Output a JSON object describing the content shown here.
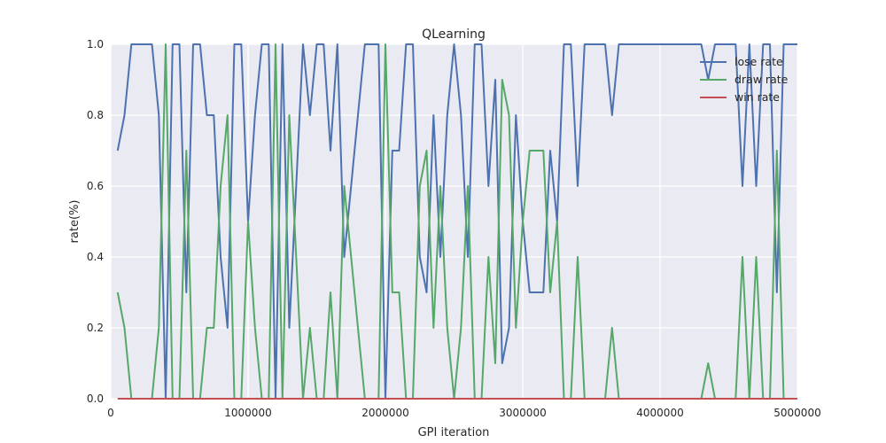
{
  "chart_data": {
    "type": "line",
    "title": "QLearning",
    "xlabel": "GPI iteration",
    "ylabel": "rate(%)",
    "xlim": [
      0,
      5000000
    ],
    "ylim": [
      0.0,
      1.0
    ],
    "xticks": [
      "0",
      "1000000",
      "2000000",
      "3000000",
      "4000000",
      "5000000"
    ],
    "yticks": [
      "0.0",
      "0.2",
      "0.4",
      "0.6",
      "0.8",
      "1.0"
    ],
    "grid": true,
    "legend_position": "top-right",
    "x": [
      50000,
      100000,
      150000,
      200000,
      250000,
      300000,
      350000,
      400000,
      450000,
      500000,
      550000,
      600000,
      650000,
      700000,
      750000,
      800000,
      850000,
      900000,
      950000,
      1000000,
      1050000,
      1100000,
      1150000,
      1200000,
      1250000,
      1300000,
      1350000,
      1400000,
      1450000,
      1500000,
      1550000,
      1600000,
      1650000,
      1700000,
      1750000,
      1800000,
      1850000,
      1900000,
      1950000,
      2000000,
      2050000,
      2100000,
      2150000,
      2200000,
      2250000,
      2300000,
      2350000,
      2400000,
      2450000,
      2500000,
      2550000,
      2600000,
      2650000,
      2700000,
      2750000,
      2800000,
      2850000,
      2900000,
      2950000,
      3000000,
      3050000,
      3100000,
      3150000,
      3200000,
      3250000,
      3300000,
      3350000,
      3400000,
      3450000,
      3500000,
      3550000,
      3600000,
      3650000,
      3700000,
      3750000,
      3800000,
      3850000,
      3900000,
      3950000,
      4000000,
      4050000,
      4100000,
      4150000,
      4200000,
      4250000,
      4300000,
      4350000,
      4400000,
      4450000,
      4500000,
      4550000,
      4600000,
      4650000,
      4700000,
      4750000,
      4800000,
      4850000,
      4900000,
      4950000,
      5000000
    ],
    "series": [
      {
        "name": "lose rate",
        "color": "#4c72b0",
        "values": [
          0.7,
          0.8,
          1.0,
          1.0,
          1.0,
          1.0,
          0.8,
          0.0,
          1.0,
          1.0,
          0.3,
          1.0,
          1.0,
          0.8,
          0.8,
          0.4,
          0.2,
          1.0,
          1.0,
          0.5,
          0.8,
          1.0,
          1.0,
          0.0,
          1.0,
          0.2,
          0.6,
          1.0,
          0.8,
          1.0,
          1.0,
          0.7,
          1.0,
          0.4,
          0.6,
          0.8,
          1.0,
          1.0,
          1.0,
          0.0,
          0.7,
          0.7,
          1.0,
          1.0,
          0.4,
          0.3,
          0.8,
          0.4,
          0.8,
          1.0,
          0.8,
          0.4,
          1.0,
          1.0,
          0.6,
          0.9,
          0.1,
          0.2,
          0.8,
          0.5,
          0.3,
          0.3,
          0.3,
          0.7,
          0.5,
          1.0,
          1.0,
          0.6,
          1.0,
          1.0,
          1.0,
          1.0,
          0.8,
          1.0,
          1.0,
          1.0,
          1.0,
          1.0,
          1.0,
          1.0,
          1.0,
          1.0,
          1.0,
          1.0,
          1.0,
          1.0,
          0.9,
          1.0,
          1.0,
          1.0,
          1.0,
          0.6,
          1.0,
          0.6,
          1.0,
          1.0,
          0.3,
          1.0,
          1.0,
          1.0
        ]
      },
      {
        "name": "draw rate",
        "color": "#55a868",
        "values": [
          0.3,
          0.2,
          0.0,
          0.0,
          0.0,
          0.0,
          0.2,
          1.0,
          0.0,
          0.0,
          0.7,
          0.0,
          0.0,
          0.2,
          0.2,
          0.6,
          0.8,
          0.0,
          0.0,
          0.5,
          0.2,
          0.0,
          0.0,
          1.0,
          0.0,
          0.8,
          0.4,
          0.0,
          0.2,
          0.0,
          0.0,
          0.3,
          0.0,
          0.6,
          0.4,
          0.2,
          0.0,
          0.0,
          0.0,
          1.0,
          0.3,
          0.3,
          0.0,
          0.0,
          0.6,
          0.7,
          0.2,
          0.6,
          0.2,
          0.0,
          0.2,
          0.6,
          0.0,
          0.0,
          0.4,
          0.1,
          0.9,
          0.8,
          0.2,
          0.5,
          0.7,
          0.7,
          0.7,
          0.3,
          0.5,
          0.0,
          0.0,
          0.4,
          0.0,
          0.0,
          0.0,
          0.0,
          0.2,
          0.0,
          0.0,
          0.0,
          0.0,
          0.0,
          0.0,
          0.0,
          0.0,
          0.0,
          0.0,
          0.0,
          0.0,
          0.0,
          0.1,
          0.0,
          0.0,
          0.0,
          0.0,
          0.4,
          0.0,
          0.4,
          0.0,
          0.0,
          0.7,
          0.0,
          0.0,
          0.0
        ]
      },
      {
        "name": "win rate",
        "color": "#c44e52",
        "values": [
          0,
          0,
          0,
          0,
          0,
          0,
          0,
          0,
          0,
          0,
          0,
          0,
          0,
          0,
          0,
          0,
          0,
          0,
          0,
          0,
          0,
          0,
          0,
          0,
          0,
          0,
          0,
          0,
          0,
          0,
          0,
          0,
          0,
          0,
          0,
          0,
          0,
          0,
          0,
          0,
          0,
          0,
          0,
          0,
          0,
          0,
          0,
          0,
          0,
          0,
          0,
          0,
          0,
          0,
          0,
          0,
          0,
          0,
          0,
          0,
          0,
          0,
          0,
          0,
          0,
          0,
          0,
          0,
          0,
          0,
          0,
          0,
          0,
          0,
          0,
          0,
          0,
          0,
          0,
          0,
          0,
          0,
          0,
          0,
          0,
          0,
          0,
          0,
          0,
          0,
          0,
          0,
          0,
          0,
          0,
          0,
          0,
          0,
          0,
          0
        ]
      }
    ]
  }
}
